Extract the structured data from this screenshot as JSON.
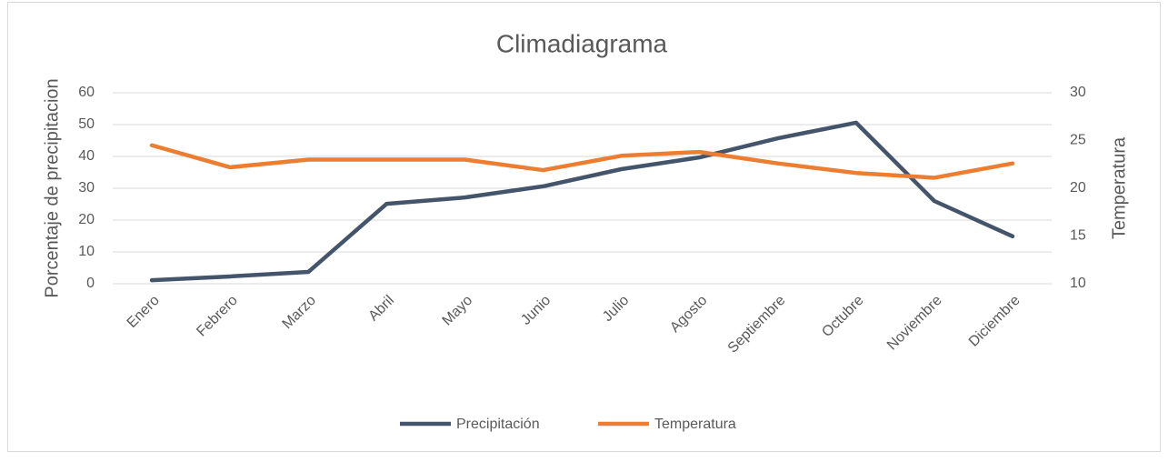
{
  "chart_data": {
    "type": "line",
    "title": "Climadiagrama",
    "y_label": "Porcentaje de precipitacion",
    "y2_label": "Temperatura",
    "categories": [
      "Enero",
      "Febrero",
      "Marzo",
      "Abril",
      "Mayo",
      "Junio",
      "Julio",
      "Agosto",
      "Septiembre",
      "Octubre",
      "Noviembre",
      "Diciembre"
    ],
    "series": [
      {
        "name": "Precipitación",
        "color": "#44546a",
        "values": [
          1.1,
          2.3,
          3.7,
          25.1,
          27.1,
          30.6,
          36,
          39.7,
          45.7,
          50.6,
          26,
          14.9
        ]
      },
      {
        "name": "Temperatura",
        "color": "#ed7d31",
        "axis": "y2",
        "values": [
          24.5,
          22.2,
          23.0,
          23.0,
          23.0,
          21.9,
          23.4,
          23.8,
          22.6,
          21.6,
          21.1,
          22.6
        ]
      }
    ],
    "ylim": [
      0,
      60
    ],
    "yticks": [
      0,
      10,
      20,
      30,
      40,
      50,
      60
    ],
    "y2lim": [
      10,
      30
    ],
    "y2ticks": [
      10,
      15,
      20,
      25,
      30
    ],
    "grid": true,
    "legend": "bottom"
  }
}
